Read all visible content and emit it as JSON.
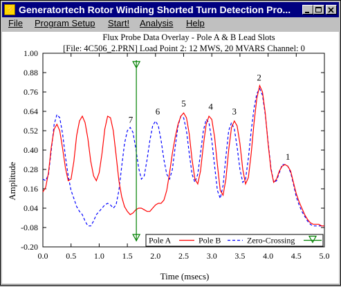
{
  "window": {
    "title": "Generatortech Rotor Winding Shorted Turn Detection Pro...",
    "icon": "generatortech-app-icon",
    "controls": [
      "minimize-icon",
      "maximize-icon",
      "close-icon"
    ]
  },
  "menu": {
    "items": [
      "File",
      "Program Setup",
      "Start!",
      "Analysis",
      "Help"
    ]
  },
  "chart_data": {
    "type": "line",
    "title": "Flux Probe Data Overlay - Pole A & B Lead Slots",
    "subtitle": "[File: 4C506_2.PRN]  Load Point 2: 12 MWS, 20 MVARS   Channel: 0",
    "xlabel": "Time (msecs)",
    "ylabel": "Amplitude",
    "xlim": [
      0.0,
      5.0
    ],
    "ylim": [
      -0.2,
      1.0
    ],
    "x_ticks": [
      "0.0",
      "0.5",
      "1.0",
      "1.5",
      "2.0",
      "2.5",
      "3.0",
      "3.5",
      "4.0",
      "4.5",
      "5.0"
    ],
    "y_ticks": [
      "1.00",
      "0.88",
      "0.76",
      "0.64",
      "0.52",
      "0.40",
      "0.28",
      "0.16",
      "0.04",
      "-0.08",
      "-0.20"
    ],
    "grid": false,
    "legend_position": "bottom-right",
    "series": [
      {
        "name": "Pole A",
        "color": "#ff0000",
        "style": "solid",
        "points": [
          [
            0.0,
            0.14
          ],
          [
            0.05,
            0.17
          ],
          [
            0.1,
            0.26
          ],
          [
            0.15,
            0.42
          ],
          [
            0.2,
            0.53
          ],
          [
            0.25,
            0.56
          ],
          [
            0.3,
            0.52
          ],
          [
            0.35,
            0.41
          ],
          [
            0.4,
            0.29
          ],
          [
            0.45,
            0.21
          ],
          [
            0.5,
            0.22
          ],
          [
            0.55,
            0.33
          ],
          [
            0.6,
            0.49
          ],
          [
            0.65,
            0.58
          ],
          [
            0.7,
            0.61
          ],
          [
            0.75,
            0.57
          ],
          [
            0.8,
            0.47
          ],
          [
            0.85,
            0.33
          ],
          [
            0.9,
            0.24
          ],
          [
            0.95,
            0.21
          ],
          [
            1.0,
            0.26
          ],
          [
            1.05,
            0.38
          ],
          [
            1.1,
            0.53
          ],
          [
            1.15,
            0.61
          ],
          [
            1.2,
            0.6
          ],
          [
            1.25,
            0.52
          ],
          [
            1.3,
            0.37
          ],
          [
            1.35,
            0.21
          ],
          [
            1.4,
            0.11
          ],
          [
            1.45,
            0.05
          ],
          [
            1.5,
            0.02
          ],
          [
            1.55,
            0.0
          ],
          [
            1.6,
            0.01
          ],
          [
            1.65,
            0.03
          ],
          [
            1.7,
            0.04
          ],
          [
            1.75,
            0.04
          ],
          [
            1.8,
            0.03
          ],
          [
            1.85,
            0.02
          ],
          [
            1.9,
            0.02
          ],
          [
            1.95,
            0.04
          ],
          [
            2.0,
            0.06
          ],
          [
            2.05,
            0.07
          ],
          [
            2.1,
            0.07
          ],
          [
            2.15,
            0.09
          ],
          [
            2.2,
            0.15
          ],
          [
            2.25,
            0.26
          ],
          [
            2.3,
            0.38
          ],
          [
            2.35,
            0.48
          ],
          [
            2.4,
            0.56
          ],
          [
            2.45,
            0.61
          ],
          [
            2.5,
            0.63
          ],
          [
            2.55,
            0.6
          ],
          [
            2.6,
            0.5
          ],
          [
            2.65,
            0.34
          ],
          [
            2.7,
            0.22
          ],
          [
            2.75,
            0.19
          ],
          [
            2.8,
            0.27
          ],
          [
            2.85,
            0.43
          ],
          [
            2.9,
            0.56
          ],
          [
            2.95,
            0.61
          ],
          [
            3.0,
            0.59
          ],
          [
            3.05,
            0.48
          ],
          [
            3.1,
            0.31
          ],
          [
            3.15,
            0.15
          ],
          [
            3.2,
            0.12
          ],
          [
            3.25,
            0.22
          ],
          [
            3.3,
            0.4
          ],
          [
            3.35,
            0.54
          ],
          [
            3.4,
            0.58
          ],
          [
            3.45,
            0.55
          ],
          [
            3.5,
            0.44
          ],
          [
            3.55,
            0.28
          ],
          [
            3.6,
            0.19
          ],
          [
            3.65,
            0.23
          ],
          [
            3.7,
            0.38
          ],
          [
            3.75,
            0.57
          ],
          [
            3.8,
            0.72
          ],
          [
            3.85,
            0.8
          ],
          [
            3.9,
            0.76
          ],
          [
            3.95,
            0.63
          ],
          [
            4.0,
            0.44
          ],
          [
            4.05,
            0.28
          ],
          [
            4.1,
            0.2
          ],
          [
            4.15,
            0.22
          ],
          [
            4.2,
            0.27
          ],
          [
            4.25,
            0.3
          ],
          [
            4.3,
            0.31
          ],
          [
            4.35,
            0.3
          ],
          [
            4.4,
            0.27
          ],
          [
            4.45,
            0.2
          ],
          [
            4.5,
            0.13
          ],
          [
            4.55,
            0.08
          ],
          [
            4.6,
            0.04
          ],
          [
            4.65,
            0.0
          ],
          [
            4.7,
            -0.03
          ],
          [
            4.75,
            -0.05
          ],
          [
            4.8,
            -0.06
          ],
          [
            4.85,
            -0.06
          ],
          [
            4.9,
            -0.06
          ],
          [
            4.95,
            -0.07
          ],
          [
            5.0,
            -0.07
          ]
        ]
      },
      {
        "name": "Pole B",
        "color": "#0000ff",
        "style": "dashed",
        "points": [
          [
            0.0,
            0.22
          ],
          [
            0.05,
            0.21
          ],
          [
            0.1,
            0.25
          ],
          [
            0.15,
            0.4
          ],
          [
            0.2,
            0.56
          ],
          [
            0.25,
            0.62
          ],
          [
            0.3,
            0.6
          ],
          [
            0.35,
            0.5
          ],
          [
            0.4,
            0.36
          ],
          [
            0.45,
            0.24
          ],
          [
            0.5,
            0.15
          ],
          [
            0.55,
            0.1
          ],
          [
            0.6,
            0.05
          ],
          [
            0.65,
            0.02
          ],
          [
            0.7,
            0.0
          ],
          [
            0.75,
            -0.04
          ],
          [
            0.8,
            -0.07
          ],
          [
            0.85,
            -0.07
          ],
          [
            0.9,
            -0.04
          ],
          [
            0.95,
            0.0
          ],
          [
            1.0,
            0.02
          ],
          [
            1.05,
            0.04
          ],
          [
            1.1,
            0.06
          ],
          [
            1.15,
            0.07
          ],
          [
            1.2,
            0.06
          ],
          [
            1.25,
            0.04
          ],
          [
            1.3,
            0.06
          ],
          [
            1.35,
            0.15
          ],
          [
            1.4,
            0.3
          ],
          [
            1.45,
            0.44
          ],
          [
            1.5,
            0.52
          ],
          [
            1.55,
            0.54
          ],
          [
            1.6,
            0.51
          ],
          [
            1.65,
            0.41
          ],
          [
            1.7,
            0.29
          ],
          [
            1.75,
            0.22
          ],
          [
            1.8,
            0.24
          ],
          [
            1.85,
            0.34
          ],
          [
            1.9,
            0.46
          ],
          [
            1.95,
            0.55
          ],
          [
            2.0,
            0.58
          ],
          [
            2.05,
            0.55
          ],
          [
            2.1,
            0.46
          ],
          [
            2.15,
            0.34
          ],
          [
            2.2,
            0.25
          ],
          [
            2.25,
            0.22
          ],
          [
            2.3,
            0.28
          ],
          [
            2.35,
            0.42
          ],
          [
            2.4,
            0.55
          ],
          [
            2.45,
            0.61
          ],
          [
            2.5,
            0.6
          ],
          [
            2.55,
            0.52
          ],
          [
            2.6,
            0.38
          ],
          [
            2.65,
            0.25
          ],
          [
            2.7,
            0.2
          ],
          [
            2.75,
            0.25
          ],
          [
            2.8,
            0.38
          ],
          [
            2.85,
            0.52
          ],
          [
            2.9,
            0.59
          ],
          [
            2.95,
            0.57
          ],
          [
            3.0,
            0.46
          ],
          [
            3.05,
            0.3
          ],
          [
            3.1,
            0.15
          ],
          [
            3.15,
            0.1
          ],
          [
            3.2,
            0.18
          ],
          [
            3.25,
            0.36
          ],
          [
            3.3,
            0.52
          ],
          [
            3.35,
            0.57
          ],
          [
            3.4,
            0.53
          ],
          [
            3.45,
            0.42
          ],
          [
            3.5,
            0.28
          ],
          [
            3.55,
            0.2
          ],
          [
            3.6,
            0.22
          ],
          [
            3.65,
            0.35
          ],
          [
            3.7,
            0.52
          ],
          [
            3.75,
            0.66
          ],
          [
            3.8,
            0.75
          ],
          [
            3.85,
            0.78
          ],
          [
            3.9,
            0.74
          ],
          [
            3.95,
            0.62
          ],
          [
            4.0,
            0.45
          ],
          [
            4.05,
            0.29
          ],
          [
            4.1,
            0.2
          ],
          [
            4.15,
            0.21
          ],
          [
            4.2,
            0.26
          ],
          [
            4.25,
            0.31
          ],
          [
            4.3,
            0.31
          ],
          [
            4.35,
            0.3
          ],
          [
            4.4,
            0.26
          ],
          [
            4.45,
            0.19
          ],
          [
            4.5,
            0.11
          ],
          [
            4.55,
            0.06
          ],
          [
            4.6,
            0.02
          ],
          [
            4.65,
            -0.01
          ],
          [
            4.7,
            -0.04
          ],
          [
            4.75,
            -0.06
          ],
          [
            4.8,
            -0.07
          ],
          [
            4.85,
            -0.07
          ],
          [
            4.9,
            -0.07
          ],
          [
            4.95,
            -0.07
          ],
          [
            5.0,
            -0.07
          ]
        ]
      },
      {
        "name": "Zero-Crossing",
        "color": "#008000",
        "style": "solid",
        "marker": "triangle-down",
        "x": 1.66
      }
    ],
    "annotations": [
      {
        "text": "1",
        "x": 4.35,
        "y": 0.34
      },
      {
        "text": "2",
        "x": 3.84,
        "y": 0.83
      },
      {
        "text": "3",
        "x": 3.4,
        "y": 0.62
      },
      {
        "text": "4",
        "x": 2.98,
        "y": 0.65
      },
      {
        "text": "5",
        "x": 2.5,
        "y": 0.67
      },
      {
        "text": "6",
        "x": 2.04,
        "y": 0.62
      },
      {
        "text": "7",
        "x": 1.56,
        "y": 0.57
      }
    ]
  }
}
